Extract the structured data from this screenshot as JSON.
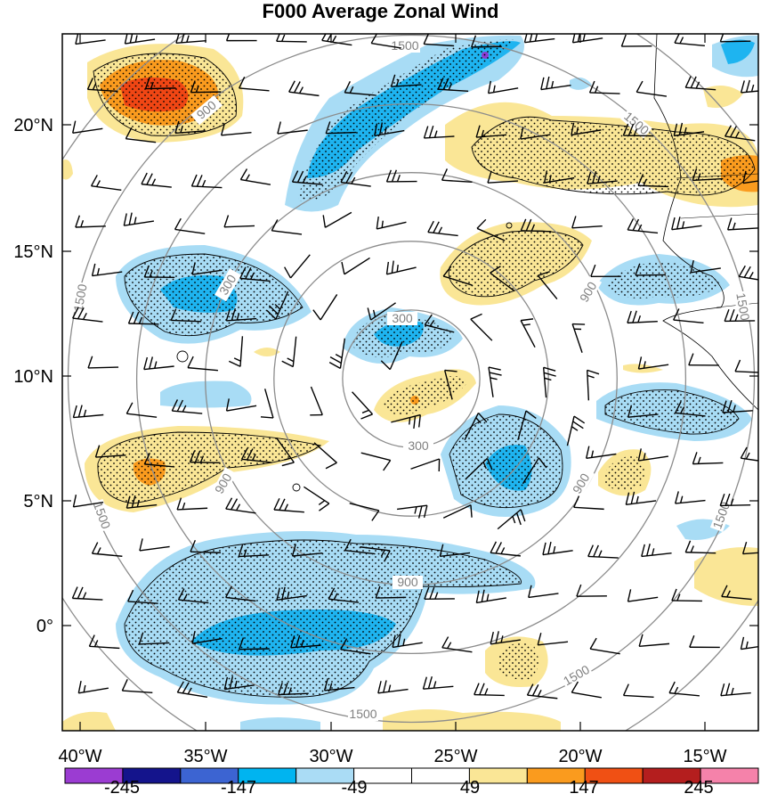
{
  "title": "F000 Average Zonal Wind",
  "map": {
    "lon_ticks": [
      "40°W",
      "35°W",
      "30°W",
      "25°W",
      "20°W",
      "15°W"
    ],
    "lat_ticks": [
      "20°N",
      "15°N",
      "10°N",
      "5°N",
      "0°"
    ],
    "range_rings": [
      {
        "label": "300",
        "radius_km": 300
      },
      {
        "label": "900",
        "radius_km": 900
      },
      {
        "label": "1500",
        "radius_km": 1500
      }
    ],
    "contour_fill_colors": {
      "strong_negative": "#1eb4f0",
      "negative": "#a8dcf5",
      "positive": "#fae696",
      "strong_positive": "#fa9b1e",
      "very_strong_positive": "#f04614",
      "extreme_negative": "#8c3cd2"
    }
  },
  "colorbar": {
    "labels": [
      "-245",
      "-147",
      "-49",
      "49",
      "147",
      "245"
    ],
    "colors": [
      "#9b3cd2",
      "#14148c",
      "#3c64d2",
      "#00b4f0",
      "#aadcf5",
      "#ffffff",
      "#ffffff",
      "#fae696",
      "#fa9b1e",
      "#f05014",
      "#b41e1e",
      "#f582aa"
    ]
  }
}
